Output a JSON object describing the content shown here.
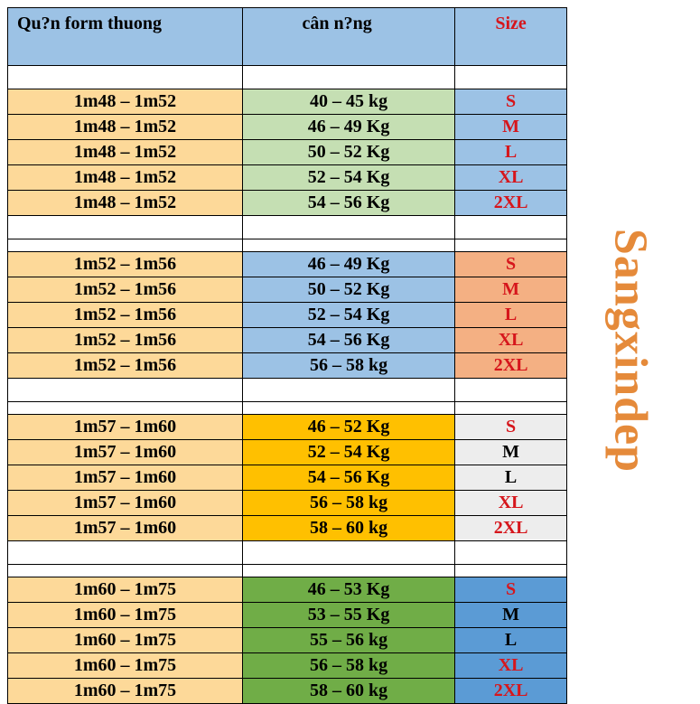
{
  "header": {
    "col1": "Qu?n form thuong",
    "col2": "cân n?ng",
    "col3": "Size",
    "bg": "#9cc2e5",
    "size_color": "#d6161c"
  },
  "brand": "Sangxindep",
  "brand_color": "#e58a3a",
  "colors": {
    "col1_default": "#fdd999",
    "g1_weight": "#c5dfb3",
    "g1_size": "#9cc2e5",
    "g2_weight": "#9cc2e5",
    "g2_size": "#f4b083",
    "g3_weight": "#ffc000",
    "g3_size": "#ededed",
    "g4_weight": "#70ad47",
    "g4_size": "#5b9bd5"
  },
  "groups": [
    {
      "weight_bg": "#c5dfb3",
      "size_bg": "#9cc2e5",
      "rows": [
        {
          "h": "1m48 – 1m52",
          "w": "40 – 45 kg",
          "s": "S",
          "sc": "red"
        },
        {
          "h": "1m48 – 1m52",
          "w": "46 – 49 Kg",
          "s": "M",
          "sc": "red"
        },
        {
          "h": "1m48 – 1m52",
          "w": "50 – 52 Kg",
          "s": "L",
          "sc": "red"
        },
        {
          "h": "1m48 – 1m52",
          "w": "52 – 54 Kg",
          "s": "XL",
          "sc": "red"
        },
        {
          "h": "1m48 – 1m52",
          "w": "54 – 56 Kg",
          "s": "2XL",
          "sc": "red"
        }
      ]
    },
    {
      "weight_bg": "#9cc2e5",
      "size_bg": "#f4b083",
      "rows": [
        {
          "h": "1m52 – 1m56",
          "w": "46 – 49 Kg",
          "s": "S",
          "sc": "red"
        },
        {
          "h": "1m52 – 1m56",
          "w": "50 – 52 Kg",
          "s": "M",
          "sc": "red"
        },
        {
          "h": "1m52 – 1m56",
          "w": "52 – 54 Kg",
          "s": "L",
          "sc": "red"
        },
        {
          "h": "1m52 – 1m56",
          "w": "54 – 56 Kg",
          "s": "XL",
          "sc": "red"
        },
        {
          "h": "1m52 – 1m56",
          "w": "56 – 58 kg",
          "s": "2XL",
          "sc": "red"
        }
      ]
    },
    {
      "weight_bg": "#ffc000",
      "size_bg": "#ededed",
      "rows": [
        {
          "h": "1m57 – 1m60",
          "w": "46 – 52 Kg",
          "s": "S",
          "sc": "red"
        },
        {
          "h": "1m57 – 1m60",
          "w": "52 – 54 Kg",
          "s": "M",
          "sc": "black"
        },
        {
          "h": "1m57 – 1m60",
          "w": "54 – 56 Kg",
          "s": "L",
          "sc": "black"
        },
        {
          "h": "1m57 – 1m60",
          "w": "56 – 58 kg",
          "s": "XL",
          "sc": "red"
        },
        {
          "h": "1m57 – 1m60",
          "w": "58 – 60 kg",
          "s": "2XL",
          "sc": "red"
        }
      ]
    },
    {
      "weight_bg": "#70ad47",
      "size_bg": "#5b9bd5",
      "rows": [
        {
          "h": "1m60 – 1m75",
          "w": "46 – 53 Kg",
          "s": "S",
          "sc": "red"
        },
        {
          "h": "1m60 – 1m75",
          "w": "53 – 55 Kg",
          "s": "M",
          "sc": "black"
        },
        {
          "h": "1m60 – 1m75",
          "w": "55 – 56 kg",
          "s": "L",
          "sc": "black"
        },
        {
          "h": "1m60 – 1m75",
          "w": "56 – 58 kg",
          "s": "XL",
          "sc": "red"
        },
        {
          "h": "1m60 – 1m75",
          "w": "58 – 60 kg",
          "s": "2XL",
          "sc": "red"
        }
      ]
    }
  ],
  "col_widths": [
    "42%",
    "38%",
    "20%"
  ]
}
